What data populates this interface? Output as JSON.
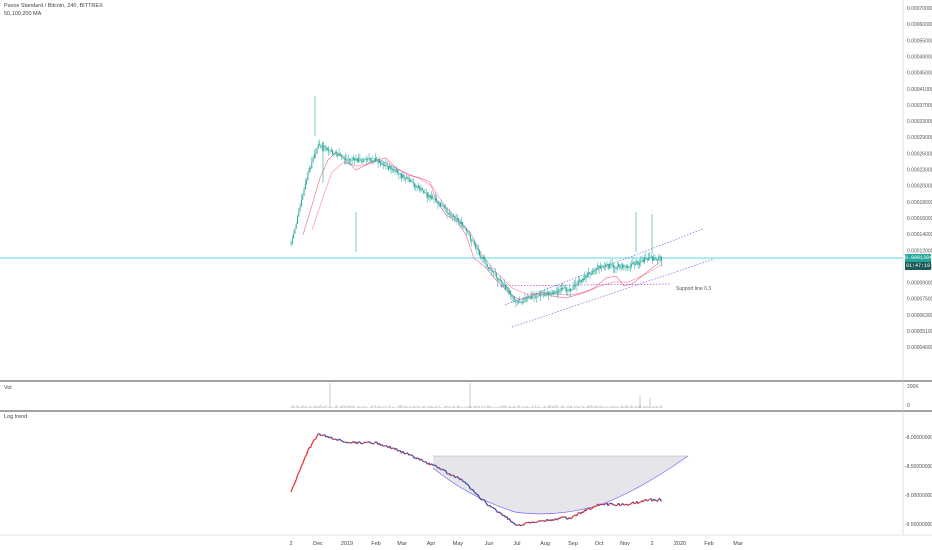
{
  "header": {
    "symbol_line": "Paxos Standard / Bitcoin, 240, BITTREX",
    "ma_line": "50,100,200 MA"
  },
  "panes": {
    "volume_label": "Vol",
    "logtrend_label": "Log trend"
  },
  "badges": {
    "price": "0.00013842",
    "time": "01:47:19",
    "price_color": "#26a69a",
    "time_color": "#1f5c58"
  },
  "annotation": {
    "support_label": "Support line  0.3"
  },
  "colors": {
    "candle_up": "#26a69a",
    "ma": "#e91e63",
    "channel": "#7b68ee",
    "support": "#9c27b0",
    "price_line": "#26c6da",
    "trend_up": "#e53935",
    "trend_down": "#3949ab"
  },
  "chart_data": [
    {
      "type": "line",
      "title": "Paxos Standard / Bitcoin, 240, BITTREX",
      "x_ticks": [
        "2",
        "Dec",
        "2019",
        "Feb",
        "Mar",
        "Apr",
        "May",
        "Jun",
        "Jul",
        "Aug",
        "Sep",
        "Oct",
        "Nov",
        "2",
        "2020",
        "Feb",
        "Mar"
      ],
      "y_ticks": [
        "0.00070000",
        "0.00060000",
        "0.00055000",
        "0.00049000",
        "0.00045000",
        "0.00041000",
        "0.00037000",
        "0.00033000",
        "0.00029000",
        "0.00026000",
        "0.00023000",
        "0.00020000",
        "0.00018000",
        "0.00016000",
        "0.00014000",
        "0.00012000",
        "0.00010500",
        "0.00009000",
        "0.00007500",
        "0.00006300",
        "0.00005100",
        "0.00004000"
      ],
      "x": [
        "2",
        "Dec",
        "2019",
        "Feb",
        "Mar",
        "Apr",
        "May",
        "Jun",
        "Jul",
        "Aug",
        "Sep",
        "Oct",
        "Nov",
        "2"
      ],
      "series": [
        {
          "values": [
            0.000155,
            0.00031,
            0.00028,
            0.00028,
            0.00025,
            0.00022,
            0.00019,
            0.000125,
            9.3e-05,
            0.0001,
            0.000106,
            0.000128,
            0.000128,
            0.000138
          ]
        },
        {
          "values": [
            null,
            0.00021,
            0.00029,
            0.00028,
            0.00026,
            0.00023,
            0.0002,
            0.00014,
            9.8e-05,
            0.0001,
            0.000105,
            0.000122,
            0.000126,
            0.000134
          ]
        }
      ],
      "annotations": [
        "Support line  0.3"
      ],
      "last_price": "0.00013842"
    },
    {
      "type": "bar",
      "title": "Vol",
      "y_ticks": [
        "200K",
        "0"
      ]
    },
    {
      "type": "line",
      "title": "Log trend",
      "y_ticks": [
        "-8.00000000",
        "-8.50000000",
        "-9.00000000",
        "-9.50000000"
      ],
      "x_ticks": [
        "2",
        "Dec",
        "2019",
        "Feb",
        "Mar",
        "Apr",
        "May",
        "Jun",
        "Jul",
        "Aug",
        "Sep",
        "Oct",
        "Nov",
        "2",
        "2020",
        "Feb",
        "Mar"
      ],
      "x": [
        "2",
        "Dec",
        "2019",
        "Feb",
        "Mar",
        "Apr",
        "May",
        "Jun",
        "Jul",
        "Aug",
        "Sep",
        "Oct",
        "Nov",
        "2"
      ],
      "series": [
        {
          "values": [
            -8.85,
            -8.05,
            -8.15,
            -8.2,
            -8.25,
            -8.45,
            -8.6,
            -8.9,
            -9.2,
            -9.15,
            -9.05,
            -8.95,
            -8.9,
            -8.85
          ]
        }
      ]
    }
  ]
}
